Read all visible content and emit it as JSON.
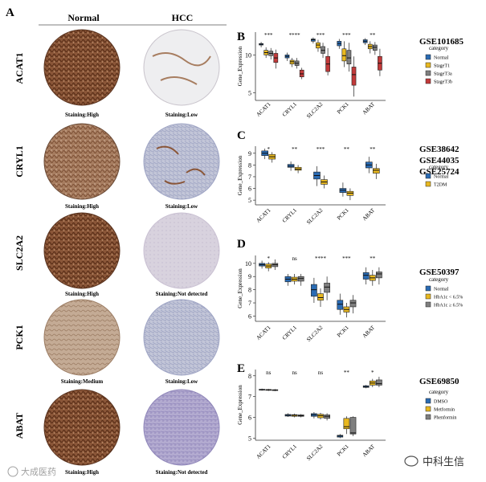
{
  "panel_a": {
    "letter": "A",
    "col_normal": "Normal",
    "col_hcc": "HCC",
    "genes": [
      {
        "name": "ACAT1",
        "normal_staining": "Staining:High",
        "hcc_staining": "Staining:Low"
      },
      {
        "name": "CRYL1",
        "normal_staining": "Staining:High",
        "hcc_staining": "Staining:Low"
      },
      {
        "name": "SLC2A2",
        "normal_staining": "Staining:High",
        "hcc_staining": "Staining:Not detected"
      },
      {
        "name": "PCK1",
        "normal_staining": "Staining:Medium",
        "hcc_staining": "Staining:Low"
      },
      {
        "name": "ABAT",
        "normal_staining": "Staining:High",
        "hcc_staining": "Staining:Not detected"
      }
    ],
    "colors": {
      "normal_tissue": "#7a4a2e",
      "hcc_low": "#c9c3cf",
      "hcc_none": "#b9b0cf"
    }
  },
  "watermarks": {
    "left": "大成医药",
    "right": "中科生信"
  },
  "chart_data": [
    {
      "type": "boxplot",
      "letter": "B",
      "dataset": "GSE101685",
      "ylabel": "Gene_Expression",
      "ylim": [
        4,
        13
      ],
      "yticks": [
        5,
        10
      ],
      "categories": [
        "ACAT1",
        "CRYL1",
        "SLC2A2",
        "PCK1",
        "ABAT"
      ],
      "significance": [
        "***",
        "****",
        "***",
        "***",
        "**"
      ],
      "legend_title": "category",
      "series": [
        {
          "name": "Normal",
          "color": "#2a6bb3",
          "boxes": [
            [
              11.0,
              11.3,
              11.4,
              11.5,
              11.7
            ],
            [
              9.2,
              9.6,
              9.8,
              10.0,
              10.3
            ],
            [
              11.5,
              11.8,
              12.0,
              12.1,
              12.3
            ],
            [
              10.8,
              11.2,
              11.5,
              11.8,
              12.1
            ],
            [
              11.3,
              11.6,
              11.8,
              12.0,
              12.2
            ]
          ]
        },
        {
          "name": "StageT1",
          "color": "#e8b820",
          "boxes": [
            [
              9.6,
              10.0,
              10.3,
              10.6,
              11.0
            ],
            [
              8.4,
              8.8,
              9.1,
              9.3,
              9.6
            ],
            [
              10.4,
              10.9,
              11.3,
              11.6,
              12.0
            ],
            [
              8.4,
              9.2,
              9.9,
              10.8,
              11.8
            ],
            [
              10.2,
              10.8,
              11.1,
              11.4,
              11.8
            ]
          ]
        },
        {
          "name": "StageT3a",
          "color": "#7f7f7f",
          "boxes": [
            [
              9.4,
              9.9,
              10.2,
              10.5,
              10.9
            ],
            [
              8.2,
              8.6,
              8.9,
              9.2,
              9.6
            ],
            [
              9.6,
              10.2,
              10.6,
              11.1,
              11.6
            ],
            [
              7.8,
              8.8,
              9.6,
              10.6,
              11.6
            ],
            [
              10.0,
              10.6,
              11.0,
              11.3,
              11.7
            ]
          ]
        },
        {
          "name": "StageT3b",
          "color": "#c23a3a",
          "boxes": [
            [
              8.2,
              9.0,
              9.6,
              10.2,
              10.7
            ],
            [
              6.8,
              7.1,
              7.5,
              8.0,
              8.3
            ],
            [
              7.3,
              7.8,
              8.8,
              9.8,
              10.9
            ],
            [
              4.5,
              6.0,
              7.4,
              8.4,
              9.8
            ],
            [
              7.2,
              8.0,
              8.9,
              9.8,
              10.8
            ]
          ]
        }
      ]
    },
    {
      "type": "boxplot",
      "letter": "C",
      "datasets": [
        "GSE38642",
        "GSE44035",
        "GSE25724"
      ],
      "ylabel": "Gene_Expression",
      "ylim": [
        4.6,
        9.6
      ],
      "yticks": [
        5,
        6,
        7,
        8,
        9
      ],
      "categories": [
        "ACAT1",
        "CRYL1",
        "SLC2A2",
        "PCK1",
        "ABAT"
      ],
      "significance": [
        "*",
        "**",
        "***",
        "**",
        "**"
      ],
      "legend_title": "category",
      "series": [
        {
          "name": "Normal",
          "color": "#2a6bb3",
          "boxes": [
            [
              8.5,
              8.8,
              9.0,
              9.2,
              9.4
            ],
            [
              7.5,
              7.8,
              7.9,
              8.05,
              8.3
            ],
            [
              6.2,
              6.8,
              7.1,
              7.4,
              7.9
            ],
            [
              5.3,
              5.65,
              5.85,
              6.0,
              6.5
            ],
            [
              7.3,
              7.75,
              8.0,
              8.25,
              8.7
            ]
          ]
        },
        {
          "name": "T2DM",
          "color": "#e8b820",
          "boxes": [
            [
              8.2,
              8.5,
              8.7,
              8.9,
              9.1
            ],
            [
              7.3,
              7.55,
              7.65,
              7.8,
              8.0
            ],
            [
              6.0,
              6.35,
              6.55,
              6.75,
              7.1
            ],
            [
              5.0,
              5.4,
              5.6,
              5.75,
              6.0
            ],
            [
              6.8,
              7.3,
              7.55,
              7.7,
              8.1
            ]
          ]
        }
      ]
    },
    {
      "type": "boxplot",
      "letter": "D",
      "dataset": "GSE50397",
      "ylabel": "Gene_Expression",
      "ylim": [
        5.6,
        10.6
      ],
      "yticks": [
        6,
        7,
        8,
        9,
        10
      ],
      "categories": [
        "ACAT1",
        "CRYL1",
        "SLC2A2",
        "PCK1",
        "ABAT"
      ],
      "significance": [
        "*",
        "ns",
        "****",
        "***",
        "**"
      ],
      "legend_title": "category",
      "series": [
        {
          "name": "Normal",
          "color": "#2a6bb3",
          "boxes": [
            [
              9.6,
              9.8,
              9.9,
              10.0,
              10.2
            ],
            [
              8.3,
              8.6,
              8.8,
              9.0,
              9.2
            ],
            [
              7.0,
              7.5,
              8.0,
              8.4,
              8.9
            ],
            [
              6.1,
              6.5,
              6.9,
              7.2,
              7.7
            ],
            [
              8.4,
              8.8,
              9.1,
              9.3,
              9.7
            ]
          ]
        },
        {
          "name": "HbA1c < 6.5%",
          "color": "#e8b820",
          "boxes": [
            [
              9.4,
              9.65,
              9.8,
              9.95,
              10.1
            ],
            [
              8.4,
              8.65,
              8.8,
              8.95,
              9.2
            ],
            [
              6.7,
              7.2,
              7.4,
              7.7,
              8.1
            ],
            [
              5.9,
              6.3,
              6.5,
              6.7,
              7.0
            ],
            [
              8.3,
              8.7,
              8.9,
              9.1,
              9.5
            ]
          ]
        },
        {
          "name": "HbA1c ≥ 6.5%",
          "color": "#7f7f7f",
          "boxes": [
            [
              9.5,
              9.75,
              9.9,
              10.0,
              10.3
            ],
            [
              8.3,
              8.65,
              8.85,
              9.0,
              9.2
            ],
            [
              7.2,
              7.8,
              8.2,
              8.5,
              9.0
            ],
            [
              6.2,
              6.7,
              7.0,
              7.2,
              7.6
            ],
            [
              8.4,
              8.9,
              9.2,
              9.35,
              9.7
            ]
          ]
        }
      ]
    },
    {
      "type": "boxplot",
      "letter": "E",
      "dataset": "GSE69850",
      "ylabel": "Gene_Expression",
      "ylim": [
        4.9,
        8.3
      ],
      "yticks": [
        5,
        6,
        7,
        8
      ],
      "categories": [
        "ACAT1",
        "CRYL1",
        "SLC2A2",
        "PCK1",
        "ABAT"
      ],
      "significance": [
        "ns",
        "ns",
        "ns",
        "**",
        "*"
      ],
      "legend_title": "category",
      "series": [
        {
          "name": "DMSO",
          "color": "#2a6bb3",
          "boxes": [
            [
              7.28,
              7.31,
              7.33,
              7.35,
              7.38
            ],
            [
              6.02,
              6.06,
              6.1,
              6.14,
              6.2
            ],
            [
              5.95,
              6.05,
              6.12,
              6.18,
              6.25
            ],
            [
              5.0,
              5.05,
              5.1,
              5.14,
              5.2
            ],
            [
              7.4,
              7.44,
              7.48,
              7.52,
              7.56
            ]
          ]
        },
        {
          "name": "Metformin",
          "color": "#e8b820",
          "boxes": [
            [
              7.27,
              7.3,
              7.32,
              7.34,
              7.37
            ],
            [
              6.0,
              6.05,
              6.1,
              6.13,
              6.18
            ],
            [
              5.9,
              5.98,
              6.08,
              6.15,
              6.22
            ],
            [
              5.2,
              5.45,
              5.55,
              5.95,
              6.05
            ],
            [
              7.45,
              7.55,
              7.65,
              7.75,
              7.85
            ]
          ]
        },
        {
          "name": "Phenformin",
          "color": "#7f7f7f",
          "boxes": [
            [
              7.26,
              7.29,
              7.31,
              7.33,
              7.36
            ],
            [
              6.0,
              6.05,
              6.08,
              6.12,
              6.16
            ],
            [
              5.85,
              5.95,
              6.05,
              6.12,
              6.2
            ],
            [
              5.1,
              5.2,
              5.25,
              6.0,
              6.05
            ],
            [
              7.45,
              7.55,
              7.62,
              7.8,
              7.95
            ]
          ]
        }
      ]
    }
  ]
}
